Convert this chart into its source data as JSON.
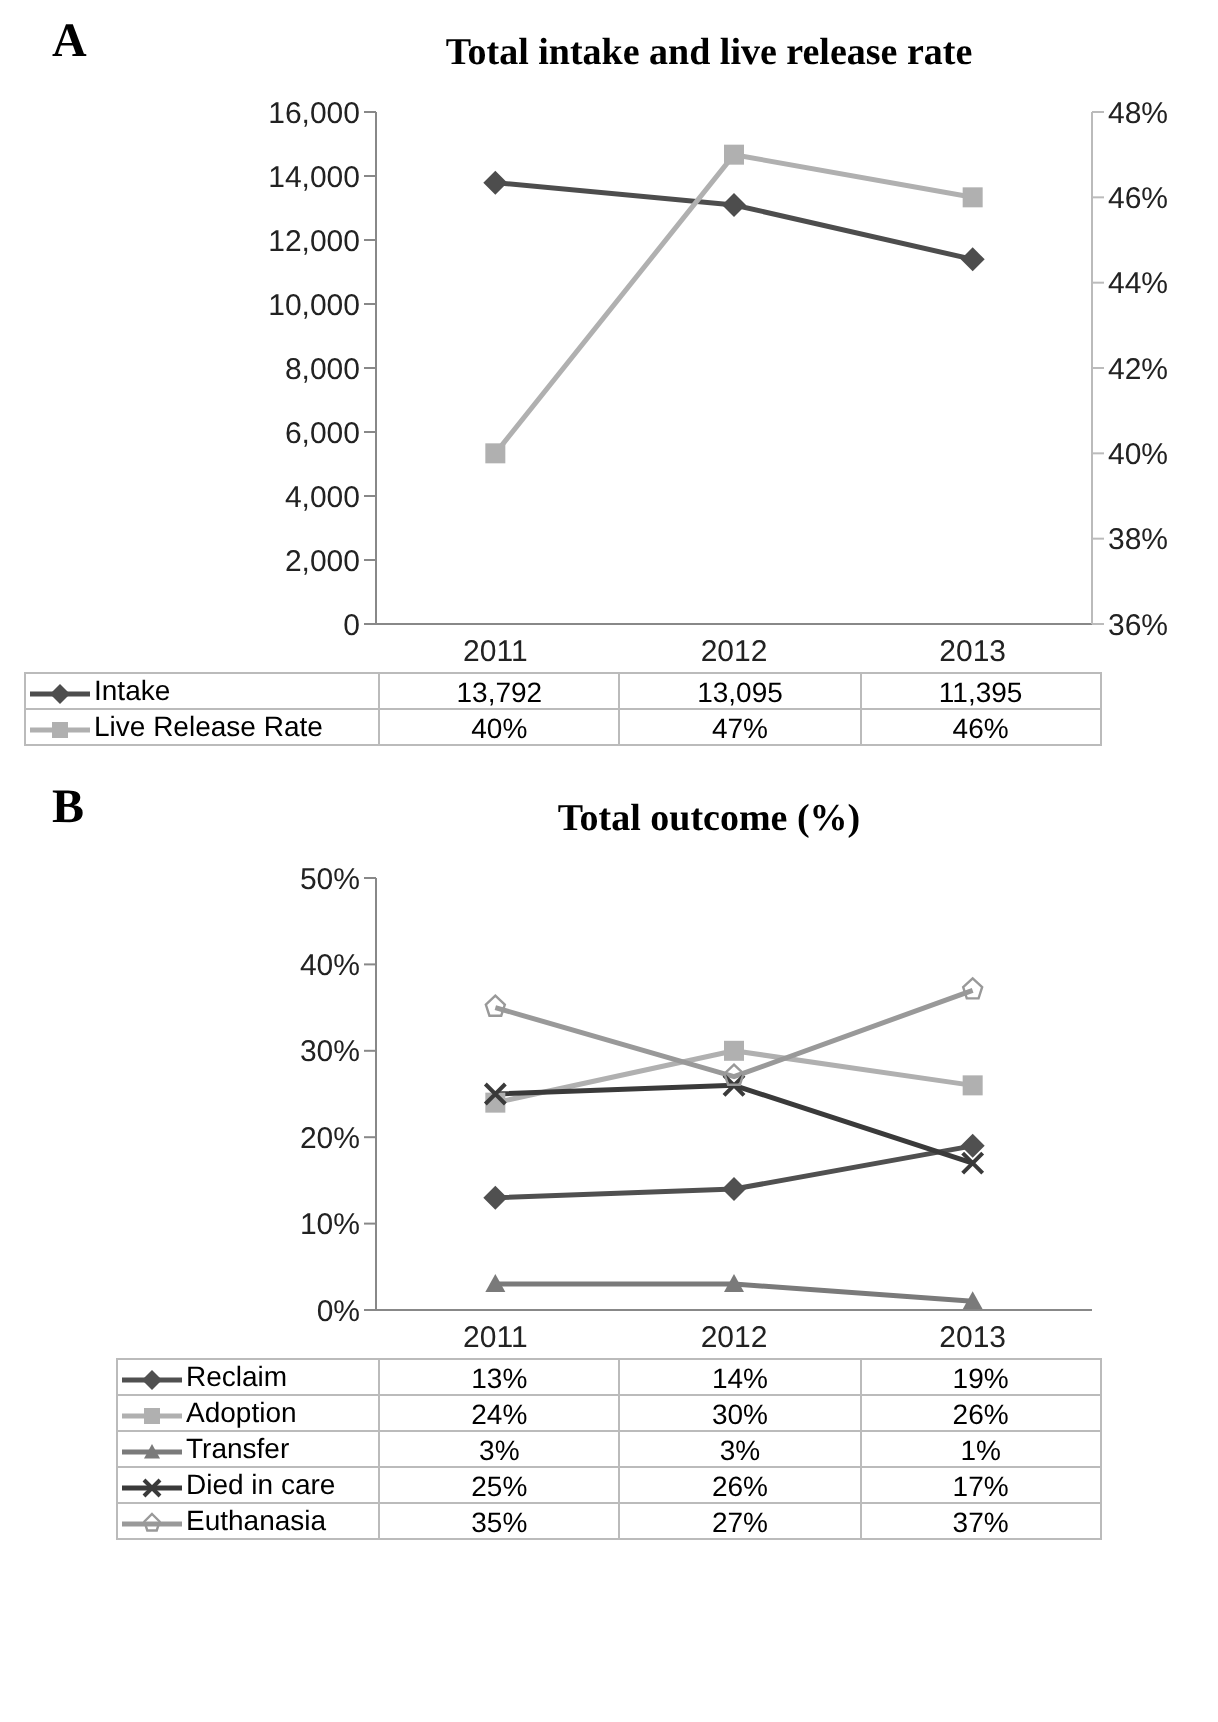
{
  "chart_data": [
    {
      "type": "line",
      "title": "Total intake and live release rate",
      "annotations": [
        "A"
      ],
      "categories": [
        "2011",
        "2012",
        "2013"
      ],
      "series": [
        {
          "name": "Intake",
          "color": "#4d4d4d",
          "marker": "diamond",
          "values": [
            13792,
            13095,
            11395
          ],
          "value_labels": [
            "13,792",
            "13,095",
            "11,395"
          ]
        },
        {
          "name": "Live Release Rate",
          "color": "#b0b0b0",
          "marker": "square",
          "axis": "y2",
          "values": [
            40,
            47,
            46
          ],
          "value_labels": [
            "40%",
            "47%",
            "46%"
          ]
        }
      ],
      "ylim": [
        0,
        16000
      ],
      "yticks": [
        {
          "value": 0,
          "label": "0"
        },
        {
          "value": 2000,
          "label": "2,000"
        },
        {
          "value": 4000,
          "label": "4,000"
        },
        {
          "value": 6000,
          "label": "6,000"
        },
        {
          "value": 8000,
          "label": "8,000"
        },
        {
          "value": 10000,
          "label": "10,000"
        },
        {
          "value": 12000,
          "label": "12,000"
        },
        {
          "value": 14000,
          "label": "14,000"
        },
        {
          "value": 16000,
          "label": "16,000"
        }
      ],
      "y2lim": [
        36,
        48
      ],
      "y2ticks": [
        {
          "value": 36,
          "label": "36%"
        },
        {
          "value": 38,
          "label": "38%"
        },
        {
          "value": 40,
          "label": "40%"
        },
        {
          "value": 42,
          "label": "42%"
        },
        {
          "value": 44,
          "label": "44%"
        },
        {
          "value": 46,
          "label": "46%"
        },
        {
          "value": 48,
          "label": "48%"
        }
      ],
      "grid": false,
      "legend": "bottom"
    },
    {
      "type": "line",
      "title": "Total outcome (%)",
      "annotations": [
        "B"
      ],
      "categories": [
        "2011",
        "2012",
        "2013"
      ],
      "series": [
        {
          "name": "Reclaim",
          "color": "#505050",
          "marker": "diamond",
          "values": [
            13,
            14,
            19
          ],
          "value_labels": [
            "13%",
            "14%",
            "19%"
          ]
        },
        {
          "name": "Adoption",
          "color": "#b0b0b0",
          "marker": "square",
          "values": [
            24,
            30,
            26
          ],
          "value_labels": [
            "24%",
            "30%",
            "26%"
          ]
        },
        {
          "name": "Transfer",
          "color": "#7a7a7a",
          "marker": "triangle",
          "values": [
            3,
            3,
            1
          ],
          "value_labels": [
            "3%",
            "3%",
            "1%"
          ]
        },
        {
          "name": "Died in care",
          "color": "#3a3a3a",
          "marker": "cross",
          "values": [
            25,
            26,
            17
          ],
          "value_labels": [
            "25%",
            "26%",
            "17%"
          ]
        },
        {
          "name": "Euthanasia",
          "color": "#999999",
          "marker": "star",
          "values": [
            35,
            27,
            37
          ],
          "value_labels": [
            "35%",
            "27%",
            "37%"
          ]
        }
      ],
      "ylim": [
        0,
        50
      ],
      "yticks": [
        {
          "value": 0,
          "label": "0%"
        },
        {
          "value": 10,
          "label": "10%"
        },
        {
          "value": 20,
          "label": "20%"
        },
        {
          "value": 30,
          "label": "30%"
        },
        {
          "value": 40,
          "label": "40%"
        },
        {
          "value": 50,
          "label": "50%"
        }
      ],
      "grid": false,
      "legend": "bottom"
    }
  ]
}
